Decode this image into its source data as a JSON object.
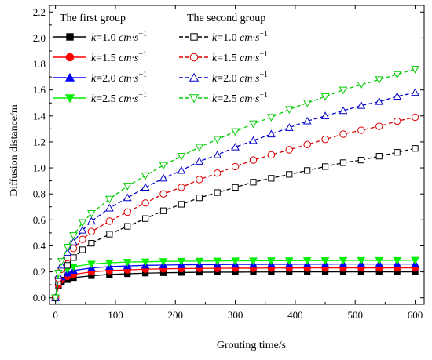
{
  "chart_data": {
    "type": "line",
    "xlabel": "Grouting time/s",
    "ylabel": "Diffusion distance/m",
    "xlim": [
      -10,
      615
    ],
    "ylim": [
      -0.05,
      2.25
    ],
    "xticks": [
      0,
      100,
      200,
      300,
      400,
      500,
      600
    ],
    "yticks": [
      0.0,
      0.2,
      0.4,
      0.6,
      0.8,
      1.0,
      1.2,
      1.4,
      1.6,
      1.8,
      2.0,
      2.2
    ],
    "xtick_labels": [
      "0",
      "100",
      "200",
      "300",
      "400",
      "500",
      "600"
    ],
    "ytick_labels": [
      "0.0",
      "0.2",
      "0.4",
      "0.6",
      "0.8",
      "1.0",
      "1.2",
      "1.4",
      "1.6",
      "1.8",
      "2.0",
      "2.2"
    ],
    "grid": false,
    "legend_position": "top-left",
    "legend_groups": [
      "The first group",
      "The second group"
    ],
    "series": [
      {
        "name": "k=1.0 cm·s⁻¹",
        "k_text": "1.0",
        "group": 1,
        "color": "#000000",
        "marker": "square",
        "filled": true,
        "dashed": false,
        "x": [
          0,
          5,
          10,
          20,
          30,
          60,
          90,
          120,
          150,
          180,
          210,
          240,
          270,
          300,
          330,
          360,
          390,
          420,
          450,
          480,
          510,
          540,
          570,
          600
        ],
        "y": [
          0.0,
          0.09,
          0.12,
          0.14,
          0.155,
          0.17,
          0.18,
          0.185,
          0.19,
          0.193,
          0.195,
          0.197,
          0.198,
          0.198,
          0.199,
          0.199,
          0.2,
          0.2,
          0.2,
          0.2,
          0.2,
          0.2,
          0.2,
          0.2
        ]
      },
      {
        "name": "k=1.5 cm·s⁻¹",
        "k_text": "1.5",
        "group": 1,
        "color": "#ff0000",
        "marker": "circle",
        "filled": true,
        "dashed": false,
        "x": [
          0,
          5,
          10,
          20,
          30,
          60,
          90,
          120,
          150,
          180,
          210,
          240,
          270,
          300,
          330,
          360,
          390,
          420,
          450,
          480,
          510,
          540,
          570,
          600
        ],
        "y": [
          0.0,
          0.1,
          0.14,
          0.165,
          0.18,
          0.2,
          0.21,
          0.215,
          0.22,
          0.223,
          0.225,
          0.226,
          0.227,
          0.228,
          0.228,
          0.229,
          0.229,
          0.23,
          0.23,
          0.23,
          0.23,
          0.23,
          0.23,
          0.23
        ]
      },
      {
        "name": "k=2.0 cm·s⁻¹",
        "k_text": "2.0",
        "group": 1,
        "color": "#0000ff",
        "marker": "triangle-up",
        "filled": true,
        "dashed": false,
        "x": [
          0,
          5,
          10,
          20,
          30,
          60,
          90,
          120,
          150,
          180,
          210,
          240,
          270,
          300,
          330,
          360,
          390,
          420,
          450,
          480,
          510,
          540,
          570,
          600
        ],
        "y": [
          0.0,
          0.12,
          0.16,
          0.19,
          0.21,
          0.23,
          0.24,
          0.245,
          0.25,
          0.252,
          0.254,
          0.255,
          0.256,
          0.257,
          0.257,
          0.258,
          0.258,
          0.259,
          0.259,
          0.26,
          0.26,
          0.26,
          0.26,
          0.26
        ]
      },
      {
        "name": "k=2.5 cm·s⁻¹",
        "k_text": "2.5",
        "group": 1,
        "color": "#00ee00",
        "marker": "triangle-down",
        "filled": true,
        "dashed": false,
        "x": [
          0,
          5,
          10,
          20,
          30,
          60,
          90,
          120,
          150,
          180,
          210,
          240,
          270,
          300,
          330,
          360,
          390,
          420,
          450,
          480,
          510,
          540,
          570,
          600
        ],
        "y": [
          0.0,
          0.14,
          0.19,
          0.22,
          0.24,
          0.26,
          0.27,
          0.275,
          0.278,
          0.28,
          0.282,
          0.283,
          0.284,
          0.285,
          0.285,
          0.286,
          0.286,
          0.287,
          0.287,
          0.288,
          0.288,
          0.288,
          0.288,
          0.29
        ]
      },
      {
        "name": "k=1.0 cm·s⁻¹",
        "k_text": "1.0",
        "group": 2,
        "color": "#000000",
        "marker": "square",
        "filled": false,
        "dashed": true,
        "x": [
          0,
          5,
          10,
          20,
          30,
          45,
          60,
          90,
          120,
          150,
          180,
          210,
          240,
          270,
          300,
          330,
          360,
          390,
          420,
          450,
          480,
          510,
          540,
          570,
          600
        ],
        "y": [
          0.0,
          0.12,
          0.18,
          0.25,
          0.31,
          0.37,
          0.42,
          0.49,
          0.55,
          0.61,
          0.67,
          0.72,
          0.77,
          0.81,
          0.85,
          0.89,
          0.92,
          0.95,
          0.98,
          1.01,
          1.04,
          1.06,
          1.09,
          1.12,
          1.15
        ]
      },
      {
        "name": "k=1.5 cm·s⁻¹",
        "k_text": "1.5",
        "group": 2,
        "color": "#dd0000",
        "marker": "circle",
        "filled": false,
        "dashed": true,
        "x": [
          0,
          5,
          10,
          20,
          30,
          45,
          60,
          90,
          120,
          150,
          180,
          210,
          240,
          270,
          300,
          330,
          360,
          390,
          420,
          450,
          480,
          510,
          540,
          570,
          600
        ],
        "y": [
          0.0,
          0.15,
          0.22,
          0.31,
          0.38,
          0.45,
          0.51,
          0.59,
          0.66,
          0.73,
          0.8,
          0.85,
          0.91,
          0.96,
          1.01,
          1.06,
          1.1,
          1.14,
          1.18,
          1.22,
          1.26,
          1.29,
          1.32,
          1.36,
          1.39
        ]
      },
      {
        "name": "k=2.0 cm·s⁻¹",
        "k_text": "2.0",
        "group": 2,
        "color": "#0000cc",
        "marker": "triangle-up",
        "filled": false,
        "dashed": true,
        "x": [
          0,
          5,
          10,
          20,
          30,
          45,
          60,
          90,
          120,
          150,
          180,
          210,
          240,
          270,
          300,
          330,
          360,
          390,
          420,
          450,
          480,
          510,
          540,
          570,
          600
        ],
        "y": [
          0.0,
          0.17,
          0.25,
          0.35,
          0.43,
          0.52,
          0.59,
          0.69,
          0.77,
          0.85,
          0.92,
          0.98,
          1.05,
          1.1,
          1.16,
          1.21,
          1.26,
          1.31,
          1.36,
          1.4,
          1.44,
          1.48,
          1.51,
          1.55,
          1.58
        ]
      },
      {
        "name": "k=2.5 cm·s⁻¹",
        "k_text": "2.5",
        "group": 2,
        "color": "#00cc00",
        "marker": "triangle-down",
        "filled": false,
        "dashed": true,
        "x": [
          0,
          5,
          10,
          20,
          30,
          45,
          60,
          90,
          120,
          150,
          180,
          210,
          240,
          270,
          300,
          330,
          360,
          390,
          420,
          450,
          480,
          510,
          540,
          570,
          600
        ],
        "y": [
          0.0,
          0.19,
          0.28,
          0.39,
          0.48,
          0.58,
          0.65,
          0.76,
          0.86,
          0.94,
          1.02,
          1.09,
          1.16,
          1.22,
          1.28,
          1.34,
          1.39,
          1.45,
          1.5,
          1.55,
          1.6,
          1.64,
          1.68,
          1.72,
          1.76
        ]
      }
    ]
  }
}
